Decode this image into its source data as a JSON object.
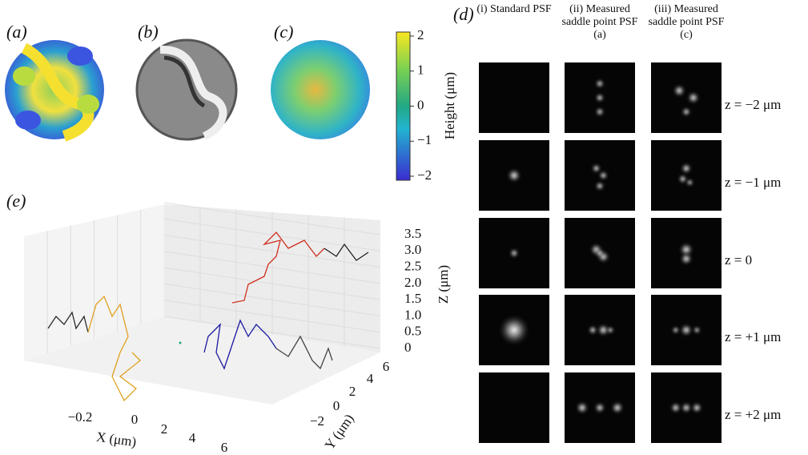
{
  "panel_a": {
    "label": "(a)"
  },
  "panel_b": {
    "label": "(b)"
  },
  "panel_c": {
    "label": "(c)"
  },
  "colorbar": {
    "label": "Height (μm)",
    "ticks": [
      "2",
      "1",
      "0",
      "−1",
      "−2"
    ]
  },
  "panel_d": {
    "label": "(d)",
    "columns": [
      "(i) Standard PSF",
      "(ii) Measured saddle point PSF (a)",
      "(iii) Measured saddle point PSF (c)"
    ],
    "rows": [
      "z = −2 μm",
      "z = −1 μm",
      "z = 0",
      "z = +1 μm",
      "z = +2 μm"
    ]
  },
  "panel_e": {
    "label": "(e)",
    "xlabel": "X (μm)",
    "ylabel": "Y (μm)",
    "zlabel": "Z (μm)",
    "xticks": [
      "−0.2",
      "0",
      "2",
      "4",
      "6"
    ],
    "yticks": [
      "−2",
      "0",
      "2",
      "4",
      "6"
    ],
    "zticks": [
      "0",
      "0.5",
      "1.0",
      "1.5",
      "2.0",
      "2.5",
      "3.0",
      "3.5"
    ]
  }
}
